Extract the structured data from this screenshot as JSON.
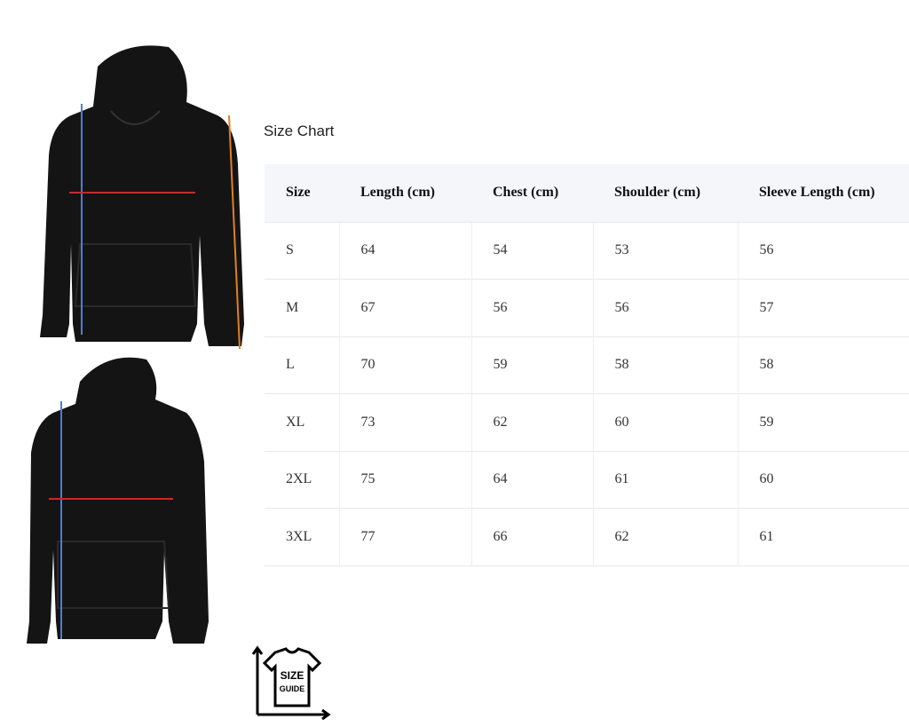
{
  "title": "Size Chart",
  "headers": [
    "Size",
    "Length (cm)",
    "Chest (cm)",
    "Shoulder (cm)",
    "Sleeve Length (cm)"
  ],
  "rows": [
    [
      "S",
      "64",
      "54",
      "53",
      "56"
    ],
    [
      "M",
      "67",
      "56",
      "56",
      "57"
    ],
    [
      "L",
      "70",
      "59",
      "58",
      "58"
    ],
    [
      "XL",
      "73",
      "62",
      "60",
      "59"
    ],
    [
      "2XL",
      "75",
      "64",
      "61",
      "60"
    ],
    [
      "3XL",
      "77",
      "66",
      "62",
      "61"
    ]
  ],
  "logo": {
    "text": "SIZE GUIDE"
  },
  "colors": {
    "length_arrow": "#4a7fd4",
    "chest_arrow": "#e02020",
    "sleeve_arrow": "#e08020",
    "garment": "#141414"
  }
}
